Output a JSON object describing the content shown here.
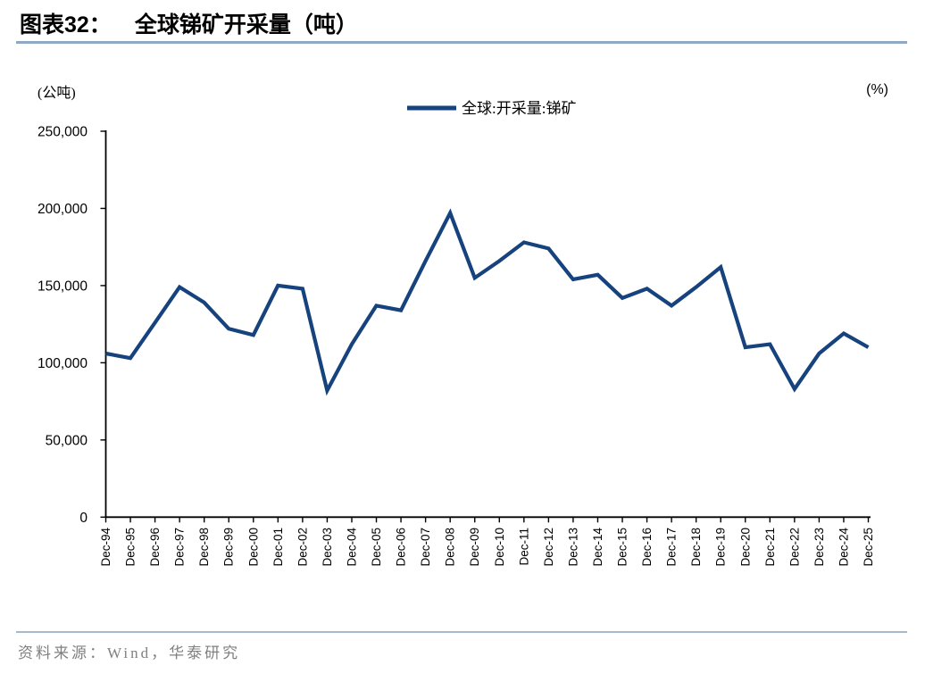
{
  "title": {
    "prefix": "图表32：",
    "text": "全球锑矿开采量（吨）"
  },
  "axes": {
    "left_unit": "(公吨)",
    "right_unit": "(%)"
  },
  "legend": {
    "label": "全球:开采量:锑矿"
  },
  "source": "资料来源：Wind，华泰研究",
  "colors": {
    "line": "#16437E",
    "title_rule": "#8FA9C4",
    "footer_rule": "#A6BACD",
    "source_text": "#808080",
    "axis": "#000000"
  },
  "chart_data": {
    "type": "line",
    "title": "全球锑矿开采量（吨）",
    "categories": [
      "Dec-94",
      "Dec-95",
      "Dec-96",
      "Dec-97",
      "Dec-98",
      "Dec-99",
      "Dec-00",
      "Dec-01",
      "Dec-02",
      "Dec-03",
      "Dec-04",
      "Dec-05",
      "Dec-06",
      "Dec-07",
      "Dec-08",
      "Dec-09",
      "Dec-10",
      "Dec-11",
      "Dec-12",
      "Dec-13",
      "Dec-14",
      "Dec-15",
      "Dec-16",
      "Dec-17",
      "Dec-18",
      "Dec-19",
      "Dec-20",
      "Dec-21",
      "Dec-22",
      "Dec-23",
      "Dec-24",
      "Dec-25"
    ],
    "series": [
      {
        "name": "全球:开采量:锑矿",
        "values": [
          106000,
          103000,
          126000,
          149000,
          139000,
          122000,
          118000,
          150000,
          148000,
          82000,
          112000,
          137000,
          134000,
          166000,
          197000,
          155000,
          166000,
          178000,
          174000,
          154000,
          157000,
          142000,
          148000,
          137000,
          149000,
          162000,
          110000,
          112000,
          83000,
          106000,
          119000,
          110000
        ]
      }
    ],
    "xlabel": "",
    "ylabel": "(公吨)",
    "ylabel_right": "(%)",
    "ylim": [
      0,
      250000
    ],
    "y_ticks": [
      0,
      50000,
      100000,
      150000,
      200000,
      250000
    ],
    "y_tick_labels": [
      "0",
      "50,000",
      "100,000",
      "150,000",
      "200,000",
      "250,000"
    ],
    "grid": false,
    "legend_position": "top-center"
  }
}
